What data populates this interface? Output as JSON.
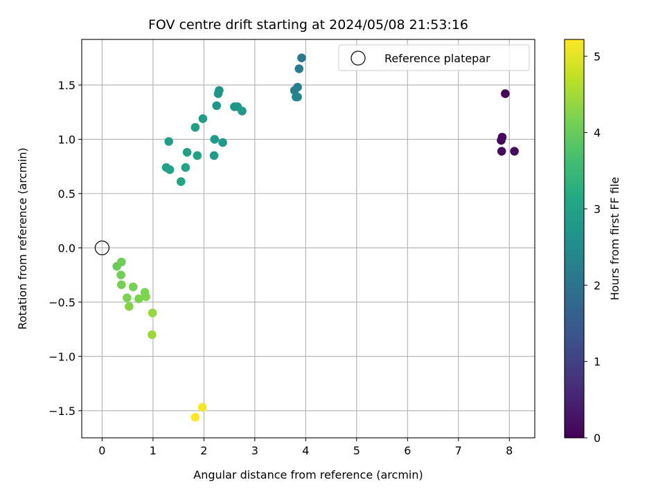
{
  "chart_data": {
    "type": "scatter",
    "title": "FOV centre drift starting at 2024/05/08 21:53:16",
    "xlabel": "Angular distance from reference (arcmin)",
    "ylabel": "Rotation from reference (arcmin)",
    "xlim": [
      -0.4,
      8.5
    ],
    "ylim": [
      -1.75,
      1.92
    ],
    "xticks": [
      0,
      1,
      2,
      3,
      4,
      5,
      6,
      7,
      8
    ],
    "yticks": [
      -1.5,
      -1.0,
      -0.5,
      0.0,
      0.5,
      1.0,
      1.5
    ],
    "grid": true,
    "legend": {
      "location": "upper right",
      "entries": [
        {
          "label": "Reference platepar",
          "marker": "open-circle"
        }
      ]
    },
    "colorbar": {
      "label": "Hours from first FF file",
      "colormap": "viridis",
      "range": [
        0,
        5.22
      ],
      "ticks": [
        0,
        1,
        2,
        3,
        4,
        5
      ]
    },
    "reference_point": {
      "x": 0,
      "y": 0
    },
    "series": [
      {
        "points": [
          {
            "x": 7.92,
            "y": 1.42,
            "hours": 0.05
          },
          {
            "x": 7.86,
            "y": 1.02,
            "hours": 0.1
          },
          {
            "x": 7.84,
            "y": 0.99,
            "hours": 0.12
          },
          {
            "x": 7.85,
            "y": 0.89,
            "hours": 0.15
          },
          {
            "x": 8.1,
            "y": 0.89,
            "hours": 0.18
          },
          {
            "x": 3.92,
            "y": 1.75,
            "hours": 2.1
          },
          {
            "x": 3.87,
            "y": 1.65,
            "hours": 2.15
          },
          {
            "x": 3.84,
            "y": 1.48,
            "hours": 2.2
          },
          {
            "x": 3.78,
            "y": 1.45,
            "hours": 2.25
          },
          {
            "x": 3.81,
            "y": 1.39,
            "hours": 2.3
          },
          {
            "x": 3.84,
            "y": 1.39,
            "hours": 2.35
          },
          {
            "x": 2.3,
            "y": 1.45,
            "hours": 2.7
          },
          {
            "x": 2.28,
            "y": 1.42,
            "hours": 2.72
          },
          {
            "x": 2.25,
            "y": 1.31,
            "hours": 2.75
          },
          {
            "x": 2.6,
            "y": 1.3,
            "hours": 2.72
          },
          {
            "x": 2.66,
            "y": 1.3,
            "hours": 2.75
          },
          {
            "x": 2.75,
            "y": 1.26,
            "hours": 2.78
          },
          {
            "x": 2.21,
            "y": 1.0,
            "hours": 2.8
          },
          {
            "x": 2.37,
            "y": 0.97,
            "hours": 2.82
          },
          {
            "x": 2.2,
            "y": 0.85,
            "hours": 2.85
          },
          {
            "x": 1.98,
            "y": 1.19,
            "hours": 2.9
          },
          {
            "x": 1.83,
            "y": 1.11,
            "hours": 2.95
          },
          {
            "x": 1.31,
            "y": 0.98,
            "hours": 2.95
          },
          {
            "x": 1.67,
            "y": 0.88,
            "hours": 2.97
          },
          {
            "x": 1.87,
            "y": 0.85,
            "hours": 3.0
          },
          {
            "x": 1.26,
            "y": 0.74,
            "hours": 3.0
          },
          {
            "x": 1.33,
            "y": 0.72,
            "hours": 3.02
          },
          {
            "x": 1.64,
            "y": 0.74,
            "hours": 3.02
          },
          {
            "x": 1.55,
            "y": 0.61,
            "hours": 3.05
          },
          {
            "x": 0.29,
            "y": -0.17,
            "hours": 4.0
          },
          {
            "x": 0.38,
            "y": -0.13,
            "hours": 4.05
          },
          {
            "x": 0.37,
            "y": -0.25,
            "hours": 4.1
          },
          {
            "x": 0.38,
            "y": -0.34,
            "hours": 4.12
          },
          {
            "x": 0.61,
            "y": -0.36,
            "hours": 4.15
          },
          {
            "x": 0.84,
            "y": -0.41,
            "hours": 4.18
          },
          {
            "x": 0.49,
            "y": -0.46,
            "hours": 4.2
          },
          {
            "x": 0.72,
            "y": -0.47,
            "hours": 4.2
          },
          {
            "x": 0.86,
            "y": -0.45,
            "hours": 4.22
          },
          {
            "x": 0.53,
            "y": -0.54,
            "hours": 4.25
          },
          {
            "x": 0.99,
            "y": -0.6,
            "hours": 4.4
          },
          {
            "x": 0.98,
            "y": -0.8,
            "hours": 4.45
          },
          {
            "x": 1.97,
            "y": -1.47,
            "hours": 5.15
          },
          {
            "x": 1.83,
            "y": -1.56,
            "hours": 5.2
          }
        ]
      }
    ]
  }
}
